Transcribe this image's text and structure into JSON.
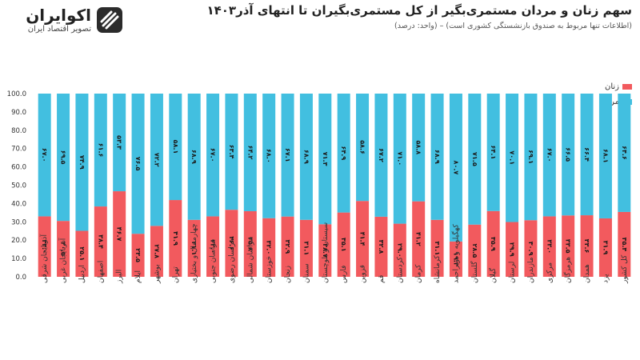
{
  "header": {
    "title": "سهم زنان و مردان مستمری‌بگیر از کل مستمری‌بگیران تا انتهای آذر۱۴۰۳",
    "subtitle": "(اطلاعات تنها مربوط به صندوق بازنشستگی کشوری است) – (واحد: درصد)"
  },
  "brand": {
    "name": "اکوایران",
    "tagline": "تصویر اقتصاد ایران"
  },
  "colors": {
    "women": "#f25a5e",
    "men": "#42bfe0"
  },
  "chart_data": {
    "type": "bar",
    "stacked": true,
    "orientation": "vertical",
    "ylim": [
      0,
      100
    ],
    "yticks": [
      "0.0",
      "10.0",
      "20.0",
      "30.0",
      "40.0",
      "50.0",
      "60.0",
      "70.0",
      "80.0",
      "90.0",
      "100.0"
    ],
    "legend": {
      "position": "top-right",
      "entries": [
        "زنان",
        "مردان"
      ]
    },
    "categories": [
      "آذربایجان شرقی",
      "آذربایجان غربی",
      "اردبیل",
      "اصفهان",
      "البرز",
      "ایلام",
      "بوشهر",
      "تهران",
      "چهارمحال و بختیاری",
      "خراسان جنوبی",
      "خراسان رضوی",
      "خراسان شمالی",
      "خوزستان",
      "زنجان",
      "سمنان",
      "سیستان و بلوچستان",
      "فارس",
      "قزوین",
      "قم",
      "کردستان",
      "کرمان",
      "کرمانشاه",
      "کهگیلویه و بویراحمد",
      "گلستان",
      "گیلان",
      "لرستان",
      "مازندران",
      "مرکزی",
      "هرمزگان",
      "همدان",
      "یزد",
      "کل کشور"
    ],
    "series": [
      {
        "name": "زنان",
        "values": [
          33.0,
          30.5,
          25.1,
          38.4,
          46.7,
          23.5,
          27.8,
          41.9,
          31.1,
          33.0,
          36.6,
          35.8,
          32.0,
          32.9,
          31.1,
          28.7,
          35.1,
          41.4,
          32.8,
          29.0,
          41.2,
          31.1,
          19.3,
          28.5,
          35.9,
          29.9,
          30.9,
          33.0,
          33.5,
          33.6,
          31.9,
          35.4
        ],
        "labels": [
          "۳۳.۰",
          "۳۰.۵",
          "۲۵.۱",
          "۳۸.۴",
          "۴۶.۷",
          "۲۳.۵",
          "۲۷.۸",
          "۴۱.۹",
          "۳۱.۱",
          "۳۳.۰",
          "۳۶.۶",
          "۳۵.۸",
          "۳۲.۰",
          "۳۲.۹",
          "۳۱.۱",
          "۲۸.۷",
          "۳۵.۱",
          "۴۱.۴",
          "۳۲.۸",
          "۲۹.۰",
          "۴۱.۲",
          "۳۱.۱",
          "۱۹.۳",
          "۲۸.۵",
          "۳۵.۹",
          "۲۹.۹",
          "۳۰.۹",
          "۳۳.۰",
          "۳۳.۵",
          "۳۳.۶",
          "۳۱.۹",
          "۳۵.۴"
        ]
      },
      {
        "name": "مردان",
        "values": [
          67.0,
          69.5,
          74.9,
          61.6,
          53.3,
          76.5,
          72.2,
          58.1,
          68.9,
          67.0,
          63.4,
          64.2,
          68.0,
          67.1,
          68.9,
          71.3,
          64.9,
          58.6,
          67.2,
          71.0,
          58.8,
          68.9,
          80.7,
          71.5,
          64.1,
          70.1,
          69.1,
          67.0,
          66.5,
          66.4,
          68.1,
          64.6
        ],
        "labels": [
          "۶۷.۰",
          "۶۹.۵",
          "۷۴.۹",
          "۶۱.۶",
          "۵۳.۳",
          "۷۶.۵",
          "۷۲.۲",
          "۵۸.۱",
          "۶۸.۹",
          "۶۷.۰",
          "۶۳.۴",
          "۶۴.۲",
          "۶۸.۰",
          "۶۷.۱",
          "۶۸.۹",
          "۷۱.۳",
          "۶۴.۹",
          "۵۸.۶",
          "۶۷.۲",
          "۷۱.۰",
          "۵۸.۸",
          "۶۸.۹",
          "۸۰.۷",
          "۷۱.۵",
          "۶۴.۱",
          "۷۰.۱",
          "۶۹.۱",
          "۶۷.۰",
          "۶۶.۵",
          "۶۶.۴",
          "۶۸.۱",
          "۶۴.۶"
        ]
      }
    ]
  }
}
